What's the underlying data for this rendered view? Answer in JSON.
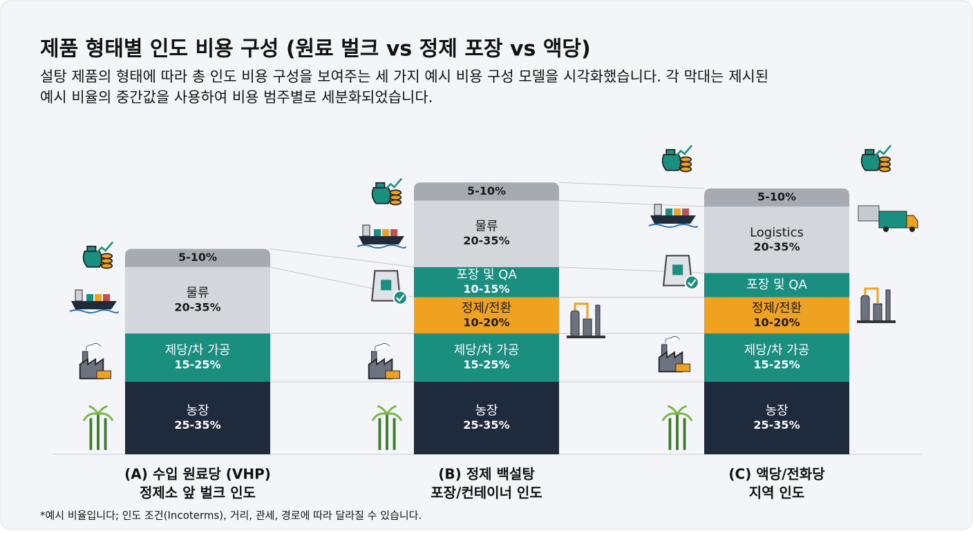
{
  "chart_data": {
    "type": "stacked-bar",
    "title": "제품 형태별 인도 비용 구성 (원료 벌크 vs 정제 포장 vs 액당)",
    "subtitle": [
      "설탕 제품의 형태에 따라 총 인도 비용 구성을 보여주는 세 가지 예시 비용 구성 모델을 시각화했습니다. 각 막대는 제시된",
      "예시 비율의 중간값을 사용하여 비용 범주별로 세분화되었습니다."
    ],
    "note": "*예시 비율입니다; 인도 조건(Incoterms), 거리, 관세, 경로에 따라 달라질 수 있습니다.",
    "bars": [
      {
        "label": [
          "(A) 수입 원료당 (VHP)",
          "정제소 앞 벌크 인도"
        ],
        "segments": [
          {
            "name": "농장",
            "value": 30,
            "value_label": "25-35%",
            "color": "#1f2a3c"
          },
          {
            "name": "제당/차 가공",
            "value": 20,
            "value_label": "15-25%",
            "color": "#1b8f7f"
          },
          {
            "name": "물류",
            "value": 27.5,
            "value_label": "20-35%",
            "color": "#d3d6db"
          },
          {
            "value": 7.5,
            "value_label": "5-10%",
            "color": "#a6abb2"
          }
        ]
      },
      {
        "label": [
          "(B) 정제 백설탕",
          "포장/컨테이너 인도"
        ],
        "segments": [
          {
            "name": "농장",
            "value": 30,
            "value_label": "25-35%",
            "color": "#1f2a3c"
          },
          {
            "name": "제당/차 가공",
            "value": 20,
            "value_label": "15-25%",
            "color": "#1b8f7f"
          },
          {
            "name": "정제/전환",
            "value": 15,
            "value_label": "10-20%",
            "color": "#eea21f"
          },
          {
            "name": "포장 및 QA",
            "value": 12.5,
            "value_label": "10-15%",
            "color": "#1b8f7f"
          },
          {
            "name": "물류",
            "value": 27.5,
            "value_label": "20-35%",
            "color": "#d3d6db"
          },
          {
            "value": 7.5,
            "value_label": "5-10%",
            "color": "#a6abb2"
          }
        ]
      },
      {
        "label": [
          "(C) 액당/전화당",
          "지역 인도"
        ],
        "segments": [
          {
            "name": "농장",
            "value": 30,
            "value_label": "25-35%",
            "color": "#1f2a3c"
          },
          {
            "name": "제당/차 가공",
            "value": 20,
            "value_label": "15-25%",
            "color": "#1b8f7f"
          },
          {
            "name": "정제/전환",
            "value": 15,
            "value_label": "10-20%",
            "color": "#eea21f"
          },
          {
            "name": "포장 및 QA",
            "value": 10,
            "color": "#1b8f7f"
          },
          {
            "name": "Logistics",
            "value": 27.5,
            "value_label": "20-35%",
            "color": "#d3d6db"
          },
          {
            "value": 7.5,
            "value_label": "5-10%",
            "color": "#a6abb2"
          }
        ]
      }
    ]
  }
}
